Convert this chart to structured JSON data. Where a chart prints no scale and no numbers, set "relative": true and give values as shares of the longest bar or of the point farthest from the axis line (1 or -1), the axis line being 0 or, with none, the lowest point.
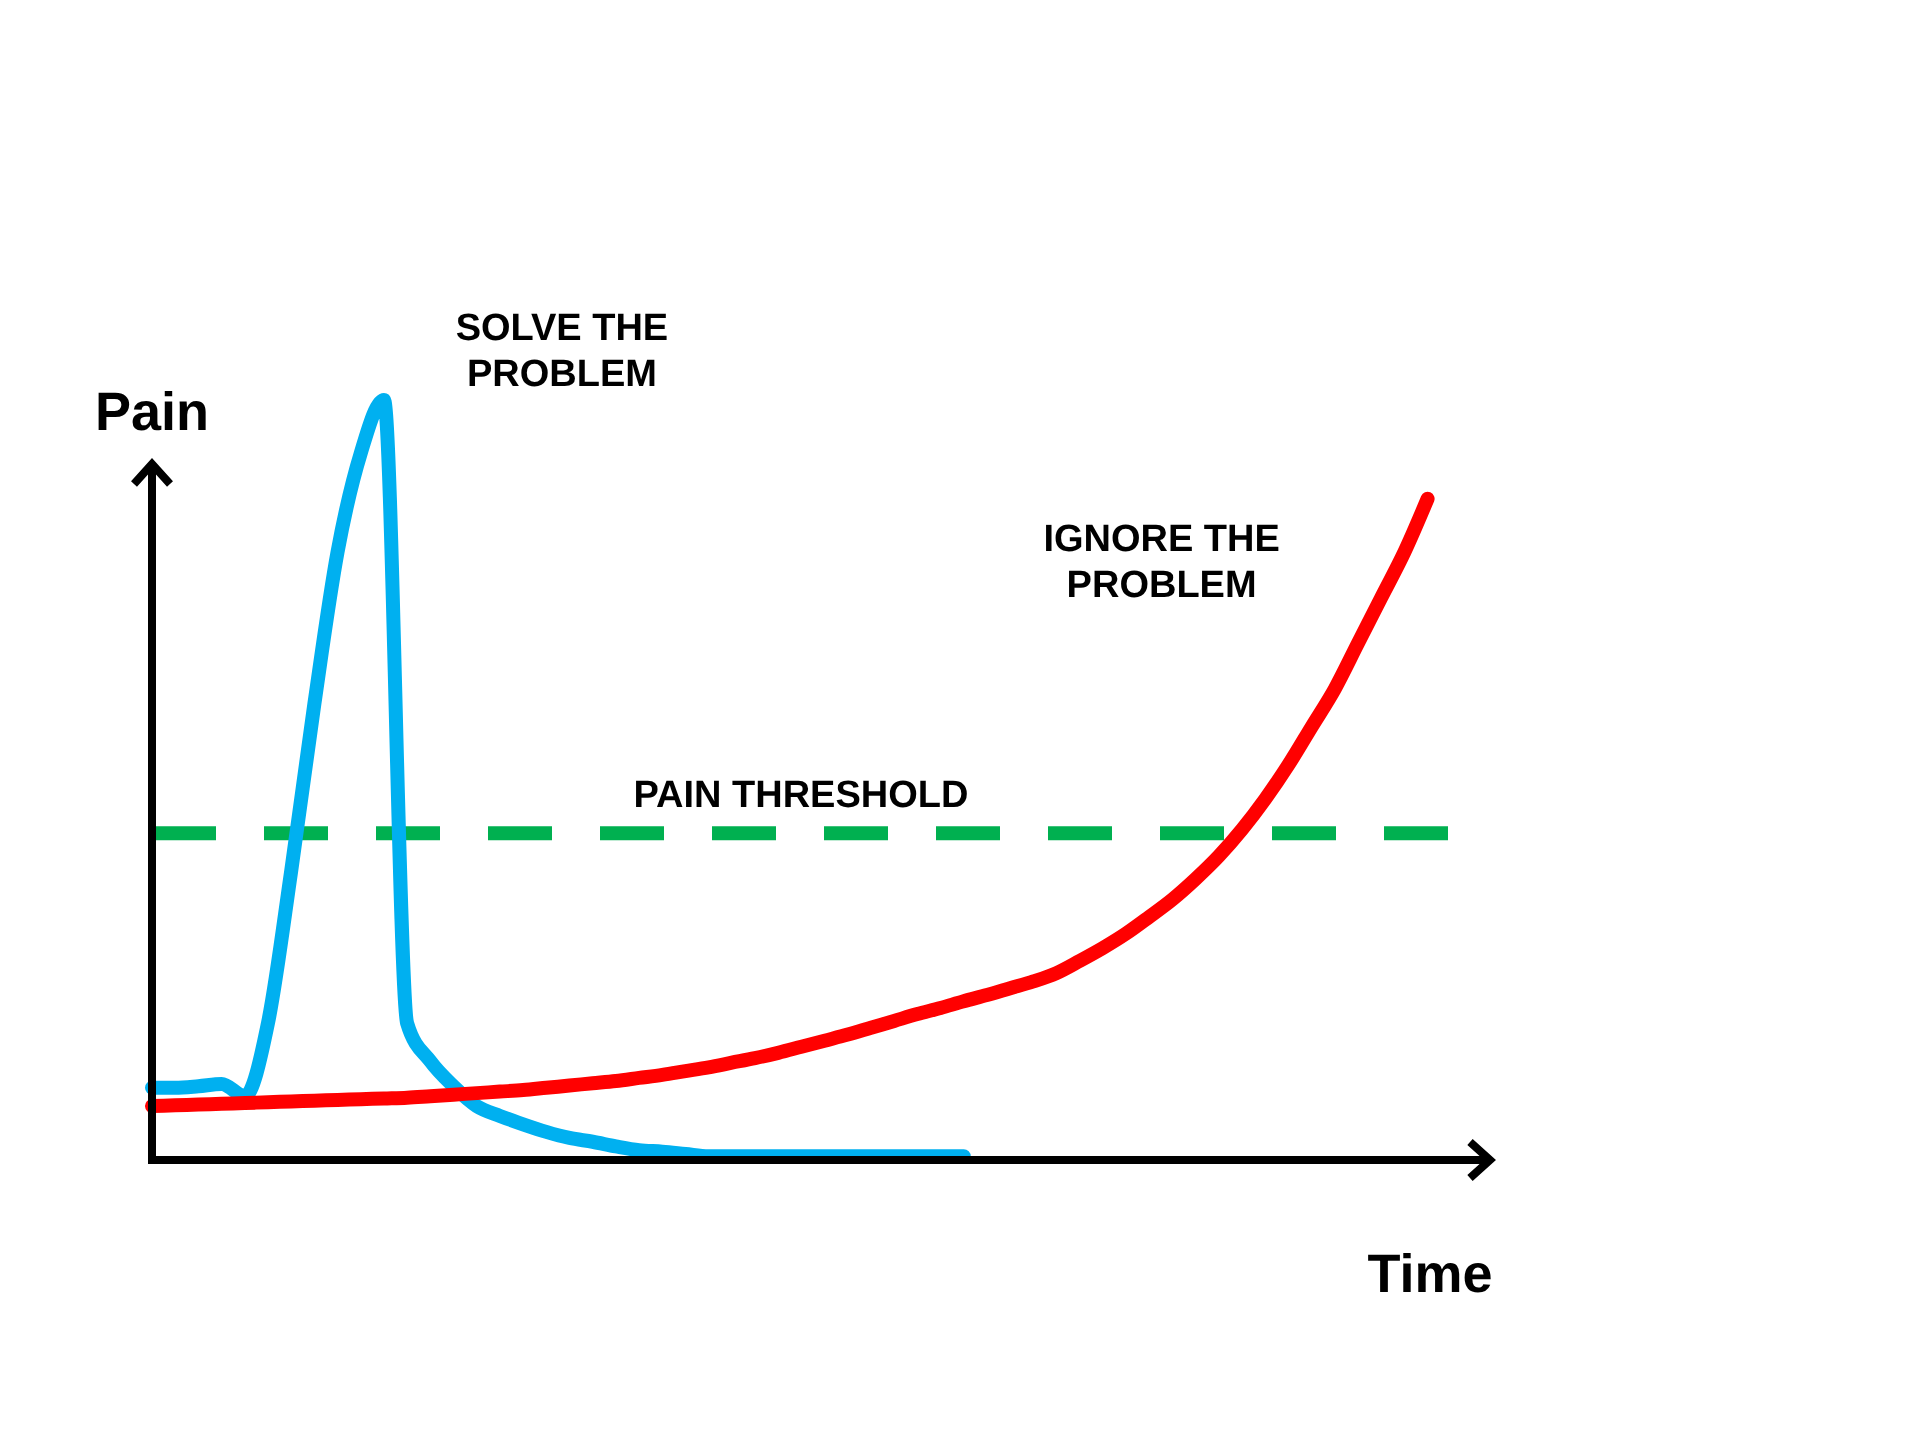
{
  "chart_data": {
    "type": "line",
    "relative": true,
    "xlabel": "Time",
    "ylabel": "Pain",
    "categories": [
      null,
      null,
      null,
      null,
      null,
      null,
      null,
      null,
      null,
      null,
      null,
      null,
      null,
      null,
      null,
      null,
      null,
      null,
      null,
      null,
      null,
      null,
      null,
      null,
      null,
      null,
      null,
      null,
      null,
      null,
      null,
      null,
      null,
      null,
      null,
      null,
      null,
      null,
      null,
      null,
      null,
      null,
      null,
      null,
      null,
      null,
      null,
      null,
      null,
      null,
      null,
      null,
      null,
      null,
      null,
      null,
      null,
      null
    ],
    "series": [
      {
        "name": "SOLVE THE PROBLEM",
        "color": "#00b0f0",
        "values": [
          0.095,
          0.095,
          0.097,
          0.1,
          0.084,
          0.18,
          0.38,
          0.6,
          0.8,
          0.93,
          1,
          0.18,
          0.13,
          0.097,
          0.071,
          0.058,
          0.047,
          0.037,
          0.029,
          0.024,
          0.018,
          0.013,
          0.011,
          0.008,
          0.005,
          0.005,
          0.005,
          0.005,
          0.005,
          0.005,
          0.005,
          0.005,
          0.005,
          0.005,
          0.005,
          0.005,
          null,
          null,
          null,
          null,
          null,
          null,
          null,
          null,
          null,
          null,
          null,
          null,
          null,
          null,
          null,
          null,
          null,
          null,
          null,
          null,
          null,
          null
        ]
      },
      {
        "name": "IGNORE THE PROBLEM",
        "color": "#ff0000",
        "values": [
          0.071,
          0.072,
          0.073,
          0.074,
          0.075,
          0.076,
          0.077,
          0.078,
          0.079,
          0.08,
          0.081,
          0.082,
          0.084,
          0.086,
          0.088,
          0.09,
          0.092,
          0.095,
          0.098,
          0.101,
          0.104,
          0.108,
          0.112,
          0.117,
          0.122,
          0.128,
          0.134,
          0.141,
          0.149,
          0.157,
          0.165,
          0.174,
          0.183,
          0.192,
          0.2,
          0.209,
          0.217,
          0.226,
          0.235,
          0.246,
          0.262,
          0.279,
          0.298,
          0.32,
          0.343,
          0.37,
          0.4,
          0.435,
          0.475,
          0.52,
          0.57,
          0.62,
          0.68,
          0.74,
          0.8,
          0.87,
          null,
          null
        ]
      }
    ],
    "ref_lines": [
      {
        "axis": "y",
        "value": 0.43,
        "label": "PAIN THRESHOLD",
        "color": "#00b050",
        "line_style": "dashed"
      }
    ]
  }
}
